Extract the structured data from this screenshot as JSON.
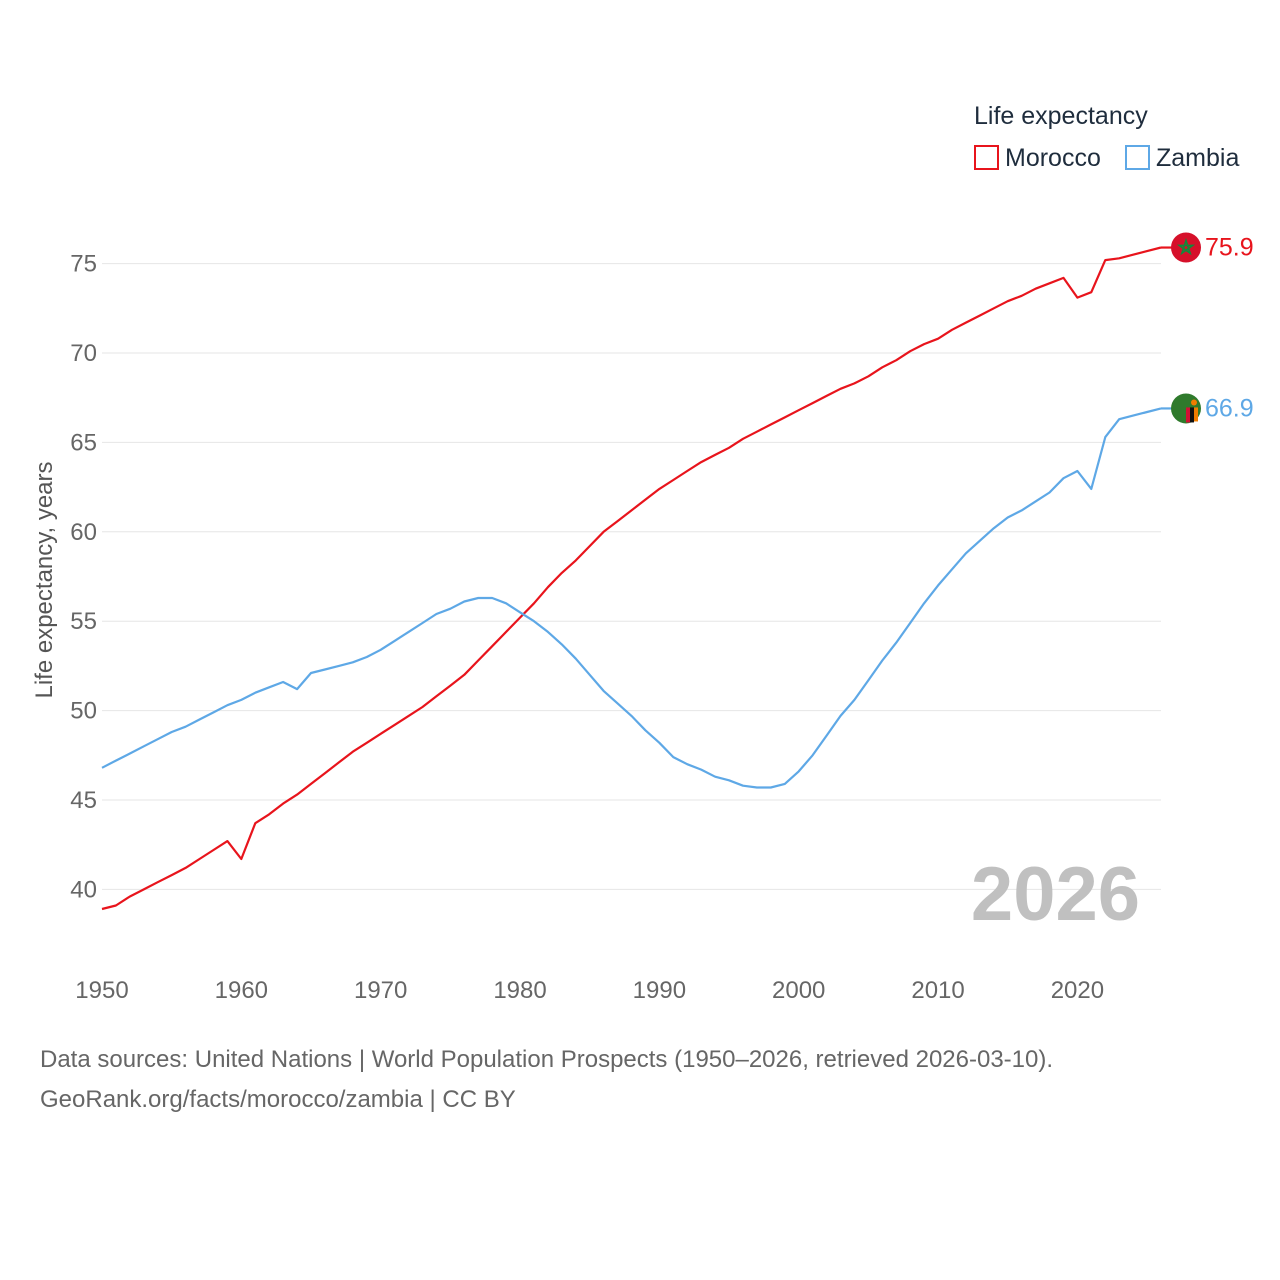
{
  "chart_data": {
    "type": "line",
    "ylabel": "Life expectancy, years",
    "xlim": [
      1950,
      2026
    ],
    "ylim": [
      37,
      78
    ],
    "x_ticks": [
      1950,
      1960,
      1970,
      1980,
      1990,
      2000,
      2010,
      2020
    ],
    "y_ticks": [
      40,
      45,
      50,
      55,
      60,
      65,
      70,
      75
    ],
    "x_tick_labels": [
      "1950",
      "1960",
      "1970",
      "1980",
      "1990",
      "2000",
      "2010",
      "2020"
    ],
    "y_tick_labels": [
      "40",
      "45",
      "50",
      "55",
      "60",
      "65",
      "70",
      "75"
    ],
    "grid": "horizontal",
    "legend": {
      "title": "Life expectancy",
      "placement": "top-right"
    },
    "current_year": "2026",
    "x": [
      1950,
      1951,
      1952,
      1953,
      1954,
      1955,
      1956,
      1957,
      1958,
      1959,
      1960,
      1961,
      1962,
      1963,
      1964,
      1965,
      1966,
      1967,
      1968,
      1969,
      1970,
      1971,
      1972,
      1973,
      1974,
      1975,
      1976,
      1977,
      1978,
      1979,
      1980,
      1981,
      1982,
      1983,
      1984,
      1985,
      1986,
      1987,
      1988,
      1989,
      1990,
      1991,
      1992,
      1993,
      1994,
      1995,
      1996,
      1997,
      1998,
      1999,
      2000,
      2001,
      2002,
      2003,
      2004,
      2005,
      2006,
      2007,
      2008,
      2009,
      2010,
      2011,
      2012,
      2013,
      2014,
      2015,
      2016,
      2017,
      2018,
      2019,
      2020,
      2021,
      2022,
      2023,
      2024,
      2025,
      2026
    ],
    "series": [
      {
        "name": "Morocco",
        "color": "#e8141c",
        "end_label": "75.9",
        "flag": "morocco-flag",
        "values": [
          38.9,
          39.1,
          39.6,
          40.0,
          40.4,
          40.8,
          41.2,
          41.7,
          42.2,
          42.7,
          41.7,
          43.7,
          44.2,
          44.8,
          45.3,
          45.9,
          46.5,
          47.1,
          47.7,
          48.2,
          48.7,
          49.2,
          49.7,
          50.2,
          50.8,
          51.4,
          52.0,
          52.8,
          53.6,
          54.4,
          55.2,
          56.0,
          56.9,
          57.7,
          58.4,
          59.2,
          60.0,
          60.6,
          61.2,
          61.8,
          62.4,
          62.9,
          63.4,
          63.9,
          64.3,
          64.7,
          65.2,
          65.6,
          66.0,
          66.4,
          66.8,
          67.2,
          67.6,
          68.0,
          68.3,
          68.7,
          69.2,
          69.6,
          70.1,
          70.5,
          70.8,
          71.3,
          71.7,
          72.1,
          72.5,
          72.9,
          73.2,
          73.6,
          73.9,
          74.2,
          73.1,
          73.4,
          75.2,
          75.3,
          75.5,
          75.7,
          75.9
        ]
      },
      {
        "name": "Zambia",
        "color": "#5ea8e6",
        "end_label": "66.9",
        "flag": "zambia-flag",
        "values": [
          46.8,
          47.2,
          47.6,
          48.0,
          48.4,
          48.8,
          49.1,
          49.5,
          49.9,
          50.3,
          50.6,
          51.0,
          51.3,
          51.6,
          51.2,
          52.1,
          52.3,
          52.5,
          52.7,
          53.0,
          53.4,
          53.9,
          54.4,
          54.9,
          55.4,
          55.7,
          56.1,
          56.3,
          56.3,
          56.0,
          55.5,
          55.0,
          54.4,
          53.7,
          52.9,
          52.0,
          51.1,
          50.4,
          49.7,
          48.9,
          48.2,
          47.4,
          47.0,
          46.7,
          46.3,
          46.1,
          45.8,
          45.7,
          45.7,
          45.9,
          46.6,
          47.5,
          48.6,
          49.7,
          50.6,
          51.7,
          52.8,
          53.8,
          54.9,
          56.0,
          57.0,
          57.9,
          58.8,
          59.5,
          60.2,
          60.8,
          61.2,
          61.7,
          62.2,
          63.0,
          63.4,
          62.4,
          65.3,
          66.3,
          66.5,
          66.7,
          66.9
        ]
      }
    ]
  },
  "footer": {
    "line1": "Data sources: United Nations | World Population Prospects (1950–2026, retrieved 2026-03-10).",
    "line2": "GeoRank.org/facts/morocco/zambia | CC BY"
  }
}
